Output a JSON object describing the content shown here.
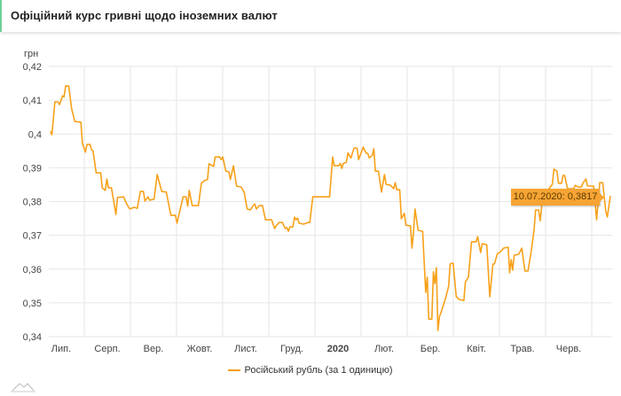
{
  "header": {
    "title": "Офіційний курс гривні щодо іноземних валют"
  },
  "chart_data": {
    "type": "line",
    "title": "Офіційний курс гривні щодо іноземних валют",
    "ylabel": "грн",
    "ylim": [
      0.34,
      0.42
    ],
    "yticks": [
      "0,34",
      "0,35",
      "0,36",
      "0,37",
      "0,38",
      "0,39",
      "0,4",
      "0,41",
      "0,42"
    ],
    "ytick_values": [
      0.34,
      0.35,
      0.36,
      0.37,
      0.38,
      0.39,
      0.4,
      0.41,
      0.42
    ],
    "xlabel_unit": "days since 01.07.2019",
    "xlim": [
      0,
      376
    ],
    "xticks": [
      "Лип.",
      "Серп.",
      "Вер.",
      "Жовт.",
      "Лист.",
      "Груд.",
      "2020",
      "Лют.",
      "Бер.",
      "Квіт.",
      "Трав.",
      "Черв."
    ],
    "grid": true,
    "legend_placement": "bottom",
    "color": "#f7a11a",
    "series": [
      {
        "name": "Російський рубль (за 1 одиницю)",
        "days": [
          8,
          9,
          11,
          13,
          14,
          16,
          17,
          18,
          20,
          22,
          24,
          28,
          29,
          31,
          32,
          34,
          35,
          36,
          38,
          41,
          42,
          44,
          45,
          46,
          48,
          51,
          52,
          56,
          58,
          60,
          63,
          65,
          67,
          69,
          70,
          72,
          73,
          76,
          78,
          81,
          84,
          87,
          90,
          91,
          95,
          97,
          98,
          99,
          101,
          105,
          107,
          109,
          111,
          112,
          115,
          116,
          119,
          120,
          121,
          123,
          125,
          126,
          128,
          130,
          133,
          135,
          137,
          139,
          141,
          142,
          143,
          145,
          147,
          149,
          153,
          155,
          156,
          158,
          160,
          162,
          163,
          164,
          165,
          167,
          168,
          169,
          170,
          171,
          174,
          177,
          178,
          180,
          190,
          191,
          193,
          194,
          197,
          198,
          199,
          200,
          202,
          203,
          205,
          207,
          209,
          210,
          213,
          215,
          216,
          217,
          219,
          220,
          221,
          223,
          225,
          227,
          228,
          231,
          233,
          234,
          235,
          237,
          238,
          240,
          241,
          244,
          245,
          246,
          247,
          249,
          252,
          253,
          254,
          255,
          256,
          258,
          259,
          260,
          261,
          262,
          263,
          264,
          267,
          269,
          270,
          272,
          274,
          276,
          279,
          280,
          282,
          284,
          287,
          288,
          290,
          291,
          294,
          296,
          298,
          299,
          301,
          303,
          305,
          308,
          309,
          310,
          311,
          312,
          315,
          317,
          319,
          321,
          323,
          325,
          326,
          328,
          329,
          331,
          334,
          337,
          338,
          340,
          341,
          343,
          344,
          345,
          347,
          351,
          352,
          354,
          356,
          357,
          359,
          360,
          364,
          366,
          367,
          368,
          370,
          372,
          373,
          374,
          375
        ],
        "values": [
          0.4008,
          0.3998,
          0.4095,
          0.4095,
          0.4087,
          0.4113,
          0.411,
          0.4142,
          0.4142,
          0.4074,
          0.4037,
          0.4035,
          0.3972,
          0.3946,
          0.3969,
          0.3969,
          0.3953,
          0.395,
          0.3885,
          0.3885,
          0.3841,
          0.3833,
          0.3867,
          0.3841,
          0.3841,
          0.3762,
          0.3812,
          0.3814,
          0.3793,
          0.3778,
          0.3783,
          0.378,
          0.383,
          0.383,
          0.3801,
          0.3814,
          0.3804,
          0.3807,
          0.388,
          0.383,
          0.3828,
          0.3759,
          0.3759,
          0.3736,
          0.3814,
          0.3814,
          0.3786,
          0.3833,
          0.3788,
          0.3788,
          0.3854,
          0.3862,
          0.3865,
          0.3912,
          0.3904,
          0.3932,
          0.3932,
          0.3924,
          0.3932,
          0.389,
          0.3888,
          0.3865,
          0.3906,
          0.3846,
          0.3843,
          0.3828,
          0.3778,
          0.3775,
          0.3788,
          0.3793,
          0.3778,
          0.3788,
          0.3788,
          0.3746,
          0.3746,
          0.372,
          0.3728,
          0.3738,
          0.3738,
          0.372,
          0.3723,
          0.3712,
          0.3725,
          0.3725,
          0.3754,
          0.3746,
          0.3751,
          0.3736,
          0.3733,
          0.3738,
          0.3738,
          0.3814,
          0.3814,
          0.3814,
          0.3932,
          0.3906,
          0.3906,
          0.3913,
          0.3898,
          0.3913,
          0.3916,
          0.3944,
          0.3929,
          0.3958,
          0.3958,
          0.3924,
          0.3961,
          0.3943,
          0.3943,
          0.3929,
          0.3937,
          0.3956,
          0.389,
          0.389,
          0.3828,
          0.388,
          0.3851,
          0.3848,
          0.3838,
          0.3856,
          0.3835,
          0.3835,
          0.3749,
          0.3765,
          0.373,
          0.3728,
          0.3662,
          0.371,
          0.3778,
          0.3715,
          0.3712,
          0.3618,
          0.3531,
          0.3576,
          0.3452,
          0.3452,
          0.3592,
          0.3557,
          0.3604,
          0.3418,
          0.346,
          0.3471,
          0.3513,
          0.3549,
          0.3615,
          0.3618,
          0.3518,
          0.351,
          0.3507,
          0.3562,
          0.3576,
          0.3681,
          0.3681,
          0.3696,
          0.3649,
          0.3675,
          0.3672,
          0.3518,
          0.3615,
          0.3615,
          0.3646,
          0.3651,
          0.3662,
          0.3665,
          0.3589,
          0.3628,
          0.3597,
          0.3641,
          0.3644,
          0.3662,
          0.3594,
          0.3594,
          0.3649,
          0.3715,
          0.3775,
          0.3775,
          0.3743,
          0.3828,
          0.3833,
          0.3851,
          0.3896,
          0.389,
          0.3854,
          0.3854,
          0.3877,
          0.3877,
          0.3838,
          0.3838,
          0.3848,
          0.3843,
          0.3843,
          0.3854,
          0.3867,
          0.3846,
          0.3846,
          0.3746,
          0.3799,
          0.3856,
          0.3856,
          0.3772,
          0.3754,
          0.3786,
          0.3817
        ]
      }
    ],
    "tooltip": "10.07.2020: 0,3817"
  }
}
